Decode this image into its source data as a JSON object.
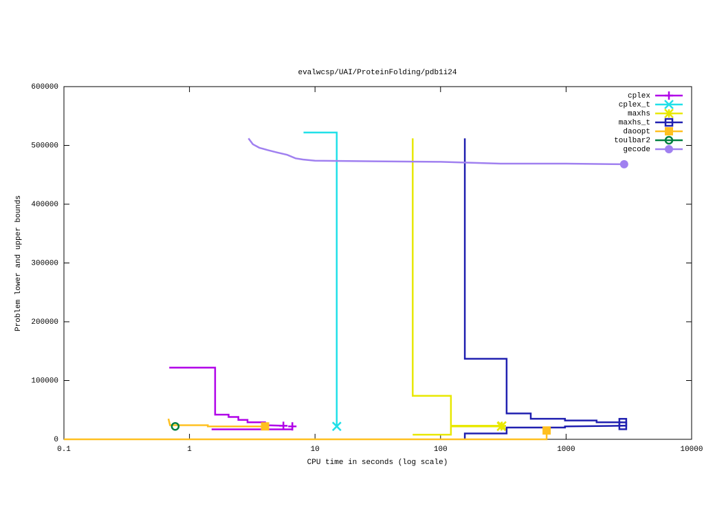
{
  "chart_data": {
    "type": "line",
    "title": "evalwcsp/UAI/ProteinFolding/pdb1i24",
    "x_label": "CPU time in seconds (log scale)",
    "y_label": "Problem lower and upper bounds",
    "xscale": "log",
    "xlim": [
      0.1,
      10000
    ],
    "xticks": [
      0.1,
      1,
      10,
      100,
      1000,
      10000
    ],
    "ylim": [
      0,
      600000
    ],
    "yticks": [
      0,
      100000,
      200000,
      300000,
      400000,
      500000,
      600000
    ],
    "grid": false,
    "legend": "top-right",
    "series": [
      {
        "name": "cplex",
        "color": "#b000e8",
        "marker": "plus",
        "x": [
          0.69,
          1.6,
          1.6,
          2.05,
          2.05,
          2.45,
          2.45,
          2.9,
          2.9,
          4,
          4,
          5.6,
          null,
          1.5,
          6.6,
          6.6
        ],
        "values": [
          122000,
          122000,
          42000,
          42000,
          38000,
          38000,
          33000,
          33000,
          29000,
          29000,
          24000,
          23000,
          null,
          17000,
          17000,
          22000
        ]
      },
      {
        "name": "cplex_t",
        "color": "#20e0e8",
        "marker": "cross",
        "x": [
          8.1,
          14.9,
          14.9
        ],
        "values": [
          522000,
          522000,
          22000
        ]
      },
      {
        "name": "maxhs",
        "color": "#e8e800",
        "marker": "star",
        "x": [
          60,
          60,
          121,
          121,
          308,
          null,
          60,
          121,
          121,
          305
        ],
        "values": [
          512000,
          74000,
          74000,
          23000,
          23000,
          null,
          8000,
          8000,
          22000,
          22000
        ]
      },
      {
        "name": "maxhs_t",
        "color": "#2020b0",
        "marker": "square",
        "x": [
          156,
          156,
          336,
          336,
          523,
          523,
          980,
          980,
          1750,
          1750,
          2830,
          2830,
          null,
          156,
          156,
          336,
          336,
          980,
          980,
          2830
        ],
        "values": [
          512000,
          137000,
          137000,
          44000,
          44000,
          35000,
          35000,
          32000,
          32000,
          29000,
          29000,
          29000,
          null,
          0,
          10000,
          10000,
          20000,
          20000,
          22000,
          23000
        ]
      },
      {
        "name": "daoopt",
        "color": "#ffc020",
        "marker": "filled-square",
        "x": [
          0.1,
          700,
          700,
          null,
          0.68,
          0.7,
          1.4,
          1.4,
          4
        ],
        "values": [
          0,
          0,
          15000,
          null,
          35000,
          24000,
          24000,
          22000,
          22000
        ]
      },
      {
        "name": "toulbar2",
        "color": "#008040",
        "marker": "circle",
        "x": [
          0.77
        ],
        "values": [
          22000
        ]
      },
      {
        "name": "gecode",
        "color": "#a080f0",
        "marker": "filled-circle",
        "x": [
          2.95,
          3.2,
          3.6,
          4.2,
          5,
          6,
          7,
          8,
          10,
          30,
          100,
          300,
          1000,
          2900
        ],
        "values": [
          512000,
          502000,
          496000,
          492000,
          488000,
          484000,
          478000,
          476000,
          474000,
          473000,
          472000,
          469000,
          469000,
          468000
        ]
      }
    ]
  }
}
